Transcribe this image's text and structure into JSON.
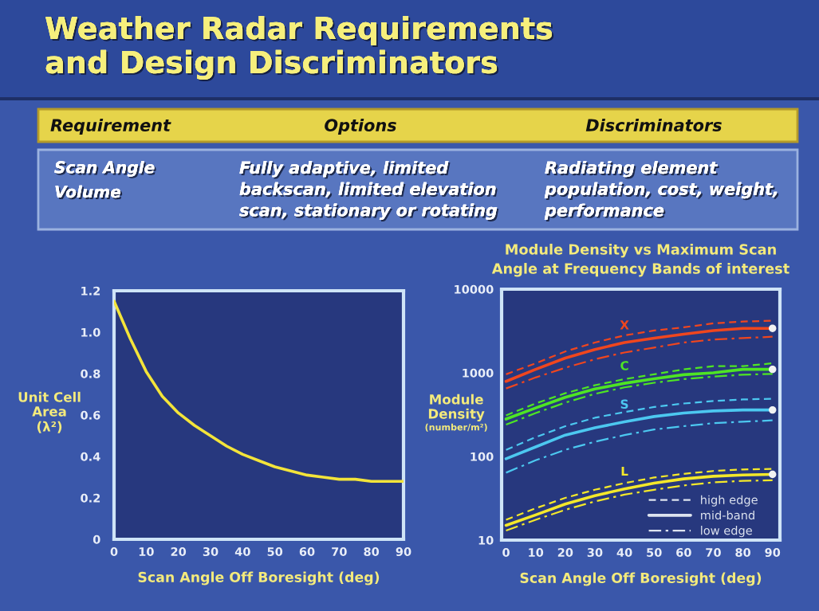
{
  "chart_data": [
    {
      "type": "other",
      "title": "Weather Radar Requirements\nand Design Discriminators",
      "categories": [
        "Requirement",
        "Options",
        "Discriminators"
      ],
      "annotations": [
        "Scan Angle\nVolume",
        "Fully adaptive, limited\nbackscan, limited elevation\nscan, stationary or rotating",
        "Radiating element\npopulation, cost, weight,\nperformance"
      ]
    },
    {
      "type": "line",
      "xlabel": "Scan Angle Off Boresight (deg)",
      "ylabel": "Unit Cell\nArea\n(λ²)",
      "x": [
        0,
        5,
        10,
        15,
        20,
        25,
        30,
        35,
        40,
        45,
        50,
        55,
        60,
        65,
        70,
        75,
        80,
        85,
        90
      ],
      "series": [
        {
          "color": "#f3e43a",
          "values": [
            1.15,
            0.97,
            0.81,
            0.69,
            0.61,
            0.55,
            0.5,
            0.45,
            0.41,
            0.38,
            0.35,
            0.33,
            0.31,
            0.3,
            0.29,
            0.29,
            0.28,
            0.28,
            0.28
          ]
        }
      ],
      "xlim": [
        0,
        90
      ],
      "ylim": [
        0,
        1.2
      ],
      "xticks": [
        0,
        10,
        20,
        30,
        40,
        50,
        60,
        70,
        80,
        90
      ],
      "yticks": [
        0,
        0.2,
        0.4,
        0.6,
        0.8,
        {
          "value": 1.0,
          "label": "1.0"
        },
        1.2
      ],
      "grid": false
    },
    {
      "type": "line",
      "title": "Module Density vs Maximum Scan\nAngle at Frequency Bands of interest",
      "xlabel": "Scan Angle Off Boresight (deg)",
      "ylabel": "Module\nDensity\n(number/m²)",
      "log": "y",
      "x": [
        0,
        10,
        20,
        30,
        40,
        50,
        60,
        70,
        80,
        90
      ],
      "series": [
        {
          "color": "#f0461e",
          "line_style": "dashed",
          "values": [
            960,
            1300,
            1800,
            2300,
            2800,
            3200,
            3500,
            3900,
            4100,
            4200
          ]
        },
        {
          "name": "X",
          "color": "#f0461e",
          "line_style": "solid",
          "values": [
            790,
            1100,
            1500,
            1900,
            2300,
            2600,
            2900,
            3200,
            3400,
            3400
          ]
        },
        {
          "color": "#f0461e",
          "line_style": "dashdot",
          "values": [
            650,
            880,
            1150,
            1450,
            1750,
            2000,
            2300,
            2500,
            2600,
            2700
          ]
        },
        {
          "color": "#4ee524",
          "line_style": "dashed",
          "values": [
            310,
            430,
            570,
            710,
            840,
            960,
            1100,
            1200,
            1200,
            1300
          ]
        },
        {
          "name": "C",
          "color": "#4ee524",
          "line_style": "solid",
          "values": [
            280,
            380,
            510,
            640,
            750,
            850,
            950,
            1000,
            1100,
            1100
          ]
        },
        {
          "color": "#4ee524",
          "line_style": "dashdot",
          "values": [
            240,
            330,
            440,
            560,
            670,
            760,
            840,
            900,
            950,
            970
          ]
        },
        {
          "color": "#4cc8f0",
          "line_style": "dashed",
          "values": [
            120,
            170,
            230,
            290,
            340,
            390,
            430,
            460,
            480,
            490
          ]
        },
        {
          "name": "S",
          "color": "#4cc8f0",
          "line_style": "solid",
          "values": [
            94,
            130,
            180,
            220,
            260,
            300,
            330,
            350,
            360,
            360
          ]
        },
        {
          "color": "#4cc8f0",
          "line_style": "dashdot",
          "values": [
            64,
            90,
            120,
            150,
            180,
            210,
            230,
            250,
            260,
            270
          ]
        },
        {
          "color": "#f4e82a",
          "line_style": "dashed",
          "values": [
            17.5,
            24,
            32,
            40,
            48,
            56,
            62,
            67,
            70,
            71
          ]
        },
        {
          "name": "L",
          "color": "#f4e82a",
          "line_style": "solid",
          "values": [
            15,
            20,
            27,
            34,
            41,
            48,
            54,
            58,
            60,
            61
          ]
        },
        {
          "color": "#f4e82a",
          "line_style": "dashdot",
          "values": [
            13,
            17.5,
            23,
            29,
            35,
            40,
            45,
            49,
            51,
            52
          ]
        },
        {
          "type": "scatter",
          "marker": "circle",
          "color": "#f2f2f2",
          "values": [
            null,
            null,
            null,
            null,
            null,
            null,
            null,
            null,
            null,
            3400
          ]
        },
        {
          "type": "scatter",
          "marker": "circle",
          "color": "#f2f2f2",
          "values": [
            null,
            null,
            null,
            null,
            null,
            null,
            null,
            null,
            null,
            1100
          ]
        },
        {
          "type": "scatter",
          "marker": "circle",
          "color": "#f2f2f2",
          "values": [
            null,
            null,
            null,
            null,
            null,
            null,
            null,
            null,
            null,
            360
          ]
        },
        {
          "type": "scatter",
          "marker": "circle",
          "color": "#f2f2f2",
          "values": [
            null,
            null,
            null,
            null,
            null,
            null,
            null,
            null,
            null,
            61
          ]
        },
        {
          "name": "high edge",
          "color": "#dde3ef",
          "line_style": "dashed",
          "values": [
            null,
            null,
            null,
            null,
            null,
            null,
            null,
            null,
            null,
            null
          ]
        },
        {
          "name": "mid-band",
          "color": "#dde3ef",
          "line_style": "solid",
          "values": [
            null,
            null,
            null,
            null,
            null,
            null,
            null,
            null,
            null,
            null
          ]
        },
        {
          "name": "low edge",
          "color": "#dde3ef",
          "line_style": "dashdot",
          "values": [
            null,
            null,
            null,
            null,
            null,
            null,
            null,
            null,
            null,
            null
          ]
        }
      ],
      "xlim": [
        -1.5,
        92.5
      ],
      "ylim": [
        10,
        10000
      ],
      "xticks": [
        0,
        10,
        20,
        30,
        40,
        50,
        60,
        70,
        80,
        90
      ],
      "yticks": [
        10,
        100,
        1000,
        10000
      ],
      "legend": "bottom right",
      "grid": false
    }
  ]
}
